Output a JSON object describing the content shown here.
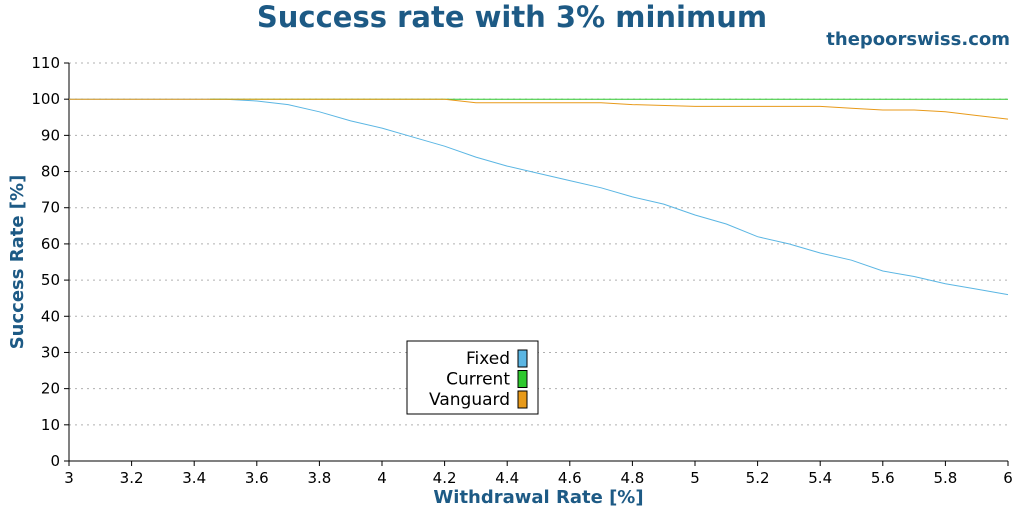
{
  "colors": {
    "title": "#1d5a85",
    "grid": "#b0b0b0",
    "axis": "#000000",
    "fixed": "#5bb6e3",
    "current": "#2ec82e",
    "vanguard": "#e89a1a"
  },
  "brand": "thepoorswiss.com",
  "chart_data": {
    "type": "line",
    "title": "Success rate with 3% minimum",
    "xlabel": "Withdrawal Rate [%]",
    "ylabel": "Success Rate [%]",
    "xlim": [
      3,
      6
    ],
    "ylim": [
      0,
      110
    ],
    "xticks": [
      "3",
      "3.2",
      "3.4",
      "3.6",
      "3.8",
      "4",
      "4.2",
      "4.4",
      "4.6",
      "4.8",
      "5",
      "5.2",
      "5.4",
      "5.6",
      "5.8",
      "6"
    ],
    "yticks": [
      "0",
      "10",
      "20",
      "30",
      "40",
      "50",
      "60",
      "70",
      "80",
      "90",
      "100",
      "110"
    ],
    "grid": "horizontal dotted",
    "legend_position": "lower-center-left",
    "series": [
      {
        "name": "Fixed",
        "color": "#5bb6e3",
        "x": [
          3.0,
          3.5,
          3.6,
          3.7,
          3.8,
          3.9,
          4.0,
          4.1,
          4.2,
          4.3,
          4.4,
          4.5,
          4.6,
          4.7,
          4.8,
          4.9,
          5.0,
          5.1,
          5.2,
          5.3,
          5.4,
          5.5,
          5.6,
          5.7,
          5.8,
          5.9,
          6.0
        ],
        "y": [
          100,
          100,
          99.5,
          98.5,
          96.5,
          94,
          92,
          89.5,
          87,
          84,
          81.5,
          79.5,
          77.5,
          75.5,
          73,
          71,
          68,
          65.5,
          62,
          60,
          57.5,
          55.5,
          52.5,
          51,
          49,
          47.5,
          46
        ]
      },
      {
        "name": "Current",
        "color": "#2ec82e",
        "x": [
          3.45,
          6.0
        ],
        "y": [
          100,
          100
        ]
      },
      {
        "name": "Vanguard",
        "color": "#e89a1a",
        "x": [
          3.0,
          4.2,
          4.3,
          4.5,
          4.7,
          4.8,
          5.0,
          5.2,
          5.4,
          5.5,
          5.6,
          5.7,
          5.8,
          5.9,
          6.0
        ],
        "y": [
          100,
          100,
          99,
          99,
          99,
          98.5,
          98,
          98,
          98,
          97.5,
          97,
          97,
          96.5,
          95.5,
          94.5
        ]
      }
    ]
  }
}
